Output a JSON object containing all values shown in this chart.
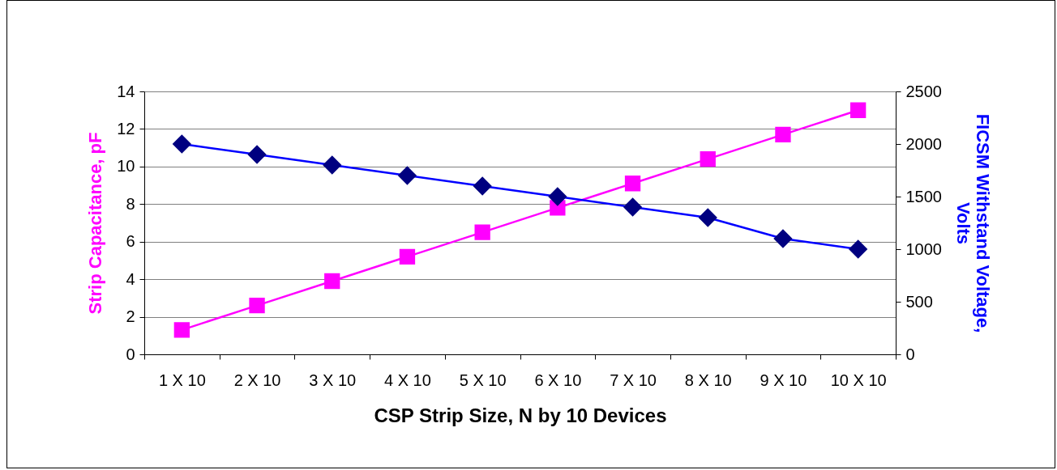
{
  "chart_data": {
    "type": "line",
    "xlabel": "CSP Strip Size, N by 10 Devices",
    "ylabel": "Strip Capacitance, pF",
    "y2label": "FICSM Withstand Voltage,\nVolts",
    "categories": [
      "1 X 10",
      "2 X 10",
      "3 X 10",
      "4 X 10",
      "5 X 10",
      "6 X 10",
      "7 X 10",
      "8 X 10",
      "9 X 10",
      "10 X 10"
    ],
    "series": [
      {
        "color": "#ff00ff",
        "marker": "square",
        "values": [
          1.3,
          2.6,
          3.9,
          5.2,
          6.5,
          7.8,
          9.1,
          10.4,
          11.7,
          13.0
        ]
      },
      {
        "color": "#0000ff",
        "marker": "diamond",
        "axis": "y2",
        "values": [
          2000,
          1900,
          1800,
          1700,
          1600,
          1500,
          1400,
          1300,
          1100,
          1000
        ]
      }
    ],
    "ylim": [
      0,
      14
    ],
    "yticks": [
      0,
      2,
      4,
      6,
      8,
      10,
      12,
      14
    ],
    "y2lim": [
      0,
      2500
    ],
    "y2ticks": [
      0,
      500,
      1000,
      1500,
      2000,
      2500
    ],
    "grid": "y"
  }
}
